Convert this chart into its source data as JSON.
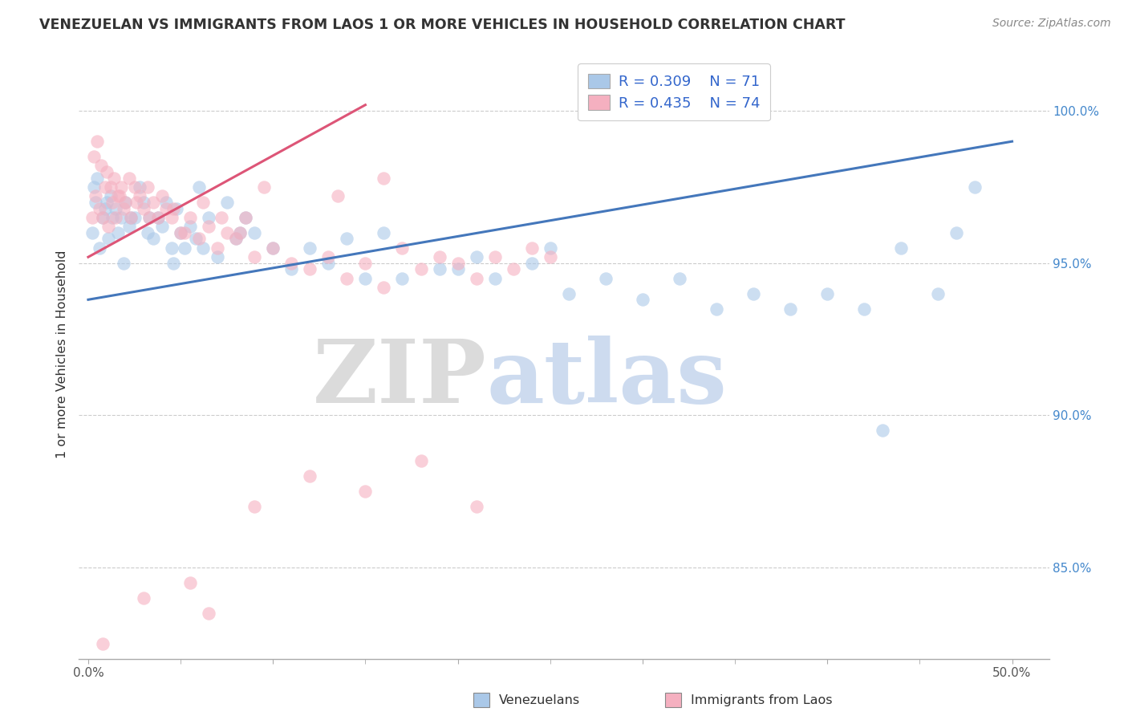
{
  "title": "VENEZUELAN VS IMMIGRANTS FROM LAOS 1 OR MORE VEHICLES IN HOUSEHOLD CORRELATION CHART",
  "source": "Source: ZipAtlas.com",
  "ylabel": "1 or more Vehicles in Household",
  "xlim": [
    -0.5,
    52
  ],
  "ylim": [
    82.0,
    102.0
  ],
  "x_ticks": [
    0.0,
    10.0,
    20.0,
    30.0,
    40.0,
    50.0
  ],
  "x_tick_labels": [
    "0.0%",
    "",
    "",
    "",
    "",
    "50.0%"
  ],
  "y_ticks": [
    85.0,
    90.0,
    95.0,
    100.0
  ],
  "y_tick_labels": [
    "85.0%",
    "90.0%",
    "95.0%",
    "100.0%"
  ],
  "legend_r_blue": "R = 0.309",
  "legend_n_blue": "N = 71",
  "legend_r_pink": "R = 0.435",
  "legend_n_pink": "N = 74",
  "blue_color": "#aac8e8",
  "pink_color": "#f5b0c0",
  "blue_line_color": "#4477bb",
  "pink_line_color": "#dd5577",
  "watermark_zip": "ZIP",
  "watermark_atlas": "atlas",
  "blue_x": [
    0.3,
    0.5,
    0.8,
    1.0,
    1.2,
    1.5,
    1.8,
    2.0,
    2.2,
    2.5,
    2.8,
    3.0,
    3.2,
    3.5,
    3.8,
    4.0,
    4.2,
    4.5,
    4.8,
    5.0,
    5.2,
    5.5,
    5.8,
    6.0,
    6.5,
    7.0,
    7.5,
    8.0,
    8.5,
    9.0,
    10.0,
    11.0,
    12.0,
    13.0,
    14.0,
    15.0,
    17.0,
    19.0,
    21.0,
    22.0,
    24.0,
    26.0,
    28.0,
    30.0,
    32.0,
    34.0,
    36.0,
    38.0,
    40.0,
    42.0,
    44.0,
    46.0,
    47.0,
    48.0,
    0.2,
    0.4,
    0.6,
    0.9,
    1.1,
    1.3,
    1.6,
    1.9,
    2.3,
    3.3,
    4.6,
    6.2,
    8.2,
    16.0,
    20.0,
    25.0,
    43.0
  ],
  "blue_y": [
    97.5,
    97.8,
    96.5,
    97.0,
    97.2,
    96.8,
    96.5,
    97.0,
    96.2,
    96.5,
    97.5,
    97.0,
    96.0,
    95.8,
    96.5,
    96.2,
    97.0,
    95.5,
    96.8,
    96.0,
    95.5,
    96.2,
    95.8,
    97.5,
    96.5,
    95.2,
    97.0,
    95.8,
    96.5,
    96.0,
    95.5,
    94.8,
    95.5,
    95.0,
    95.8,
    94.5,
    94.5,
    94.8,
    95.2,
    94.5,
    95.0,
    94.0,
    94.5,
    93.8,
    94.5,
    93.5,
    94.0,
    93.5,
    94.0,
    93.5,
    95.5,
    94.0,
    96.0,
    97.5,
    96.0,
    97.0,
    95.5,
    96.8,
    95.8,
    96.5,
    96.0,
    95.0,
    96.5,
    96.5,
    95.0,
    95.5,
    96.0,
    96.0,
    94.8,
    95.5,
    89.5
  ],
  "pink_x": [
    0.3,
    0.5,
    0.7,
    1.0,
    1.2,
    1.4,
    1.6,
    1.8,
    2.0,
    2.2,
    2.5,
    2.8,
    3.0,
    3.2,
    3.5,
    3.8,
    4.0,
    4.2,
    4.5,
    5.0,
    5.5,
    6.0,
    6.5,
    7.0,
    7.5,
    8.0,
    8.5,
    9.0,
    10.0,
    11.0,
    12.0,
    13.0,
    14.0,
    15.0,
    16.0,
    17.0,
    18.0,
    19.0,
    20.0,
    21.0,
    22.0,
    23.0,
    24.0,
    25.0,
    0.2,
    0.4,
    0.6,
    0.8,
    0.9,
    1.1,
    1.3,
    1.5,
    1.7,
    1.9,
    2.3,
    2.6,
    3.3,
    4.6,
    5.2,
    6.2,
    7.2,
    8.2,
    9.5,
    13.5,
    16.0,
    3.0,
    6.5,
    9.0,
    12.0,
    15.0,
    18.0,
    21.0,
    0.8,
    5.5
  ],
  "pink_y": [
    98.5,
    99.0,
    98.2,
    98.0,
    97.5,
    97.8,
    97.2,
    97.5,
    97.0,
    97.8,
    97.5,
    97.2,
    96.8,
    97.5,
    97.0,
    96.5,
    97.2,
    96.8,
    96.5,
    96.0,
    96.5,
    95.8,
    96.2,
    95.5,
    96.0,
    95.8,
    96.5,
    95.2,
    95.5,
    95.0,
    94.8,
    95.2,
    94.5,
    95.0,
    94.2,
    95.5,
    94.8,
    95.2,
    95.0,
    94.5,
    95.2,
    94.8,
    95.5,
    95.2,
    96.5,
    97.2,
    96.8,
    96.5,
    97.5,
    96.2,
    97.0,
    96.5,
    97.2,
    96.8,
    96.5,
    97.0,
    96.5,
    96.8,
    96.0,
    97.0,
    96.5,
    96.0,
    97.5,
    97.2,
    97.8,
    84.0,
    83.5,
    87.0,
    88.0,
    87.5,
    88.5,
    87.0,
    82.5,
    84.5
  ],
  "blue_line_x0": 0.0,
  "blue_line_y0": 93.8,
  "blue_line_x1": 50.0,
  "blue_line_y1": 99.0,
  "pink_line_x0": 0.0,
  "pink_line_y0": 95.2,
  "pink_line_x1": 15.0,
  "pink_line_y1": 100.2
}
